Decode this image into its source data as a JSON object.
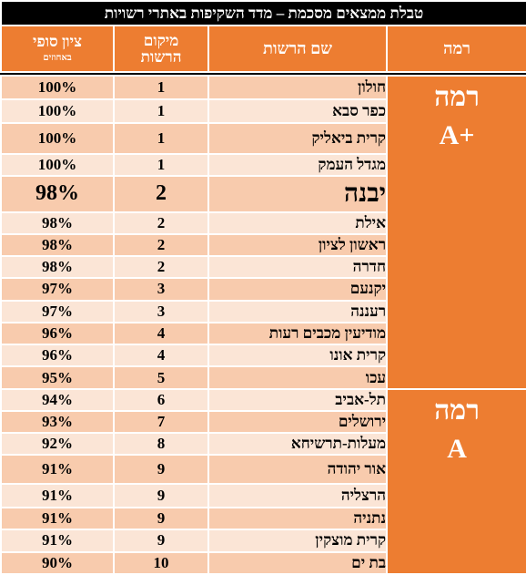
{
  "title": "טבלת ממצאים מסכמת – מדד השקיפות באתרי רשויות",
  "headers": {
    "level": "רמה",
    "name": "שם הרשות",
    "rank_line1": "מיקום",
    "rank_line2": "הרשות",
    "score_line1": "ציון סופי",
    "score_line2": "באחוזים"
  },
  "groups": [
    {
      "name": "רמה",
      "grade": "A+"
    },
    {
      "name": "רמה",
      "grade": "A"
    }
  ],
  "rows": [
    {
      "name": "חולון",
      "rank": "1",
      "score": "100%"
    },
    {
      "name": "כפר סבא",
      "rank": "1",
      "score": "100%"
    },
    {
      "name": "קרית ביאליק",
      "rank": "1",
      "score": "100%"
    },
    {
      "name": "מגדל העמק",
      "rank": "1",
      "score": "100%"
    },
    {
      "name": "יבנה",
      "rank": "2",
      "score": "98%"
    },
    {
      "name": "אילת",
      "rank": "2",
      "score": "98%"
    },
    {
      "name": "ראשון לציון",
      "rank": "2",
      "score": "98%"
    },
    {
      "name": "חדרה",
      "rank": "2",
      "score": "98%"
    },
    {
      "name": "יקנעם",
      "rank": "3",
      "score": "97%"
    },
    {
      "name": "רעננה",
      "rank": "3",
      "score": "97%"
    },
    {
      "name": "מודיעין מכבים רעות",
      "rank": "4",
      "score": "96%"
    },
    {
      "name": "קרית אונו",
      "rank": "4",
      "score": "96%"
    },
    {
      "name": "עכו",
      "rank": "5",
      "score": "95%"
    },
    {
      "name": "תל-אביב",
      "rank": "6",
      "score": "94%"
    },
    {
      "name": "ירושלים",
      "rank": "7",
      "score": "93%"
    },
    {
      "name": "מעלות-תרשיחא",
      "rank": "8",
      "score": "92%"
    },
    {
      "name": "אור יהודה",
      "rank": "9",
      "score": "91%"
    },
    {
      "name": "הרצליה",
      "rank": "9",
      "score": "91%"
    },
    {
      "name": "נתניה",
      "rank": "9",
      "score": "91%"
    },
    {
      "name": "קרית מוצקין",
      "rank": "9",
      "score": "91%"
    },
    {
      "name": "בת ים",
      "rank": "10",
      "score": "90%"
    }
  ],
  "colors": {
    "header": "#ed7d31",
    "row_dark": "#f8cbad",
    "row_light": "#fbe5d6",
    "title_bg": "#000000"
  }
}
